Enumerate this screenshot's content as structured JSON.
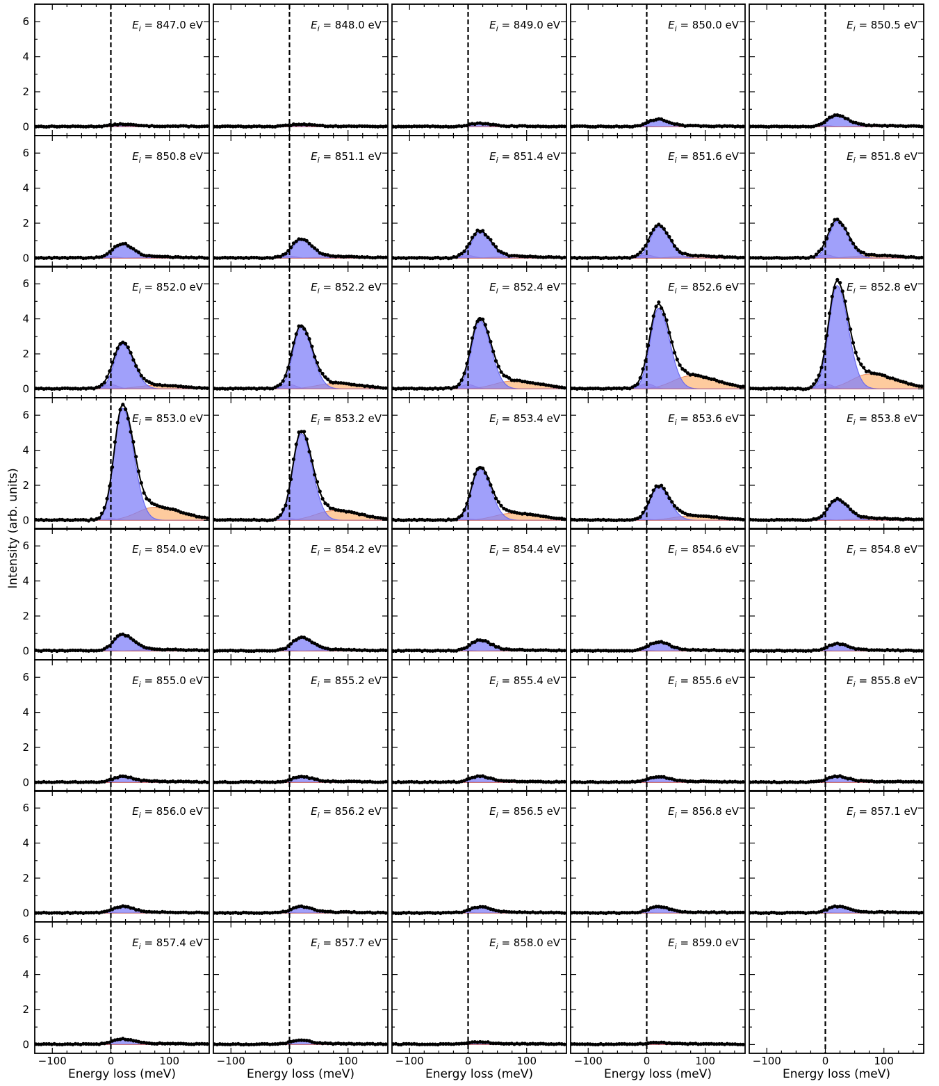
{
  "chart_data": {
    "type": "line",
    "layout": {
      "rows": 8,
      "cols": 5
    },
    "ylabel": "Intensity (arb. units)",
    "xlabel": "Energy loss (meV)",
    "xlim": [
      -130,
      168
    ],
    "ylim": [
      -0.5,
      7.0
    ],
    "xticks": [
      -100,
      0,
      100
    ],
    "xtick_labels": [
      "−100",
      "0",
      "100"
    ],
    "yticks": [
      0,
      2,
      4,
      6
    ],
    "ytick_labels": [
      "0",
      "2",
      "4",
      "6"
    ],
    "elastic_line_x": 0,
    "label_prefix": "E",
    "label_subscript": "i",
    "label_unit": "eV",
    "colors": {
      "data_points": "#000000",
      "fit_line": "#000000",
      "main_peak_fill": "#8080f8",
      "main_peak_edge": "#6a6aee",
      "broad_fill": "#fdb97d",
      "broad_edge": "#e8845a",
      "elastic_fill": "#b37dbf",
      "dashed_line": "#000000"
    },
    "panels": [
      {
        "label": "847.0",
        "peak": 0.12,
        "broad": 0.02,
        "elastic": 0.03
      },
      {
        "label": "848.0",
        "peak": 0.12,
        "broad": 0.02,
        "elastic": 0.03
      },
      {
        "label": "849.0",
        "peak": 0.16,
        "broad": 0.02,
        "elastic": 0.03
      },
      {
        "label": "850.0",
        "peak": 0.4,
        "broad": 0.03,
        "elastic": 0.05
      },
      {
        "label": "850.5",
        "peak": 0.62,
        "broad": 0.05,
        "elastic": 0.08
      },
      {
        "label": "850.8",
        "peak": 0.78,
        "broad": 0.06,
        "elastic": 0.1
      },
      {
        "label": "851.1",
        "peak": 1.05,
        "broad": 0.08,
        "elastic": 0.12
      },
      {
        "label": "851.4",
        "peak": 1.5,
        "broad": 0.1,
        "elastic": 0.15
      },
      {
        "label": "851.6",
        "peak": 1.8,
        "broad": 0.12,
        "elastic": 0.18
      },
      {
        "label": "851.8",
        "peak": 2.1,
        "broad": 0.15,
        "elastic": 0.2
      },
      {
        "label": "852.0",
        "peak": 2.55,
        "broad": 0.2,
        "elastic": 0.25
      },
      {
        "label": "852.2",
        "peak": 3.5,
        "broad": 0.3,
        "elastic": 0.25
      },
      {
        "label": "852.4",
        "peak": 3.9,
        "broad": 0.45,
        "elastic": 0.25
      },
      {
        "label": "852.6",
        "peak": 4.6,
        "broad": 0.75,
        "elastic": 0.3
      },
      {
        "label": "852.8",
        "peak": 5.9,
        "broad": 0.85,
        "elastic": 0.3
      },
      {
        "label": "853.0",
        "peak": 6.4,
        "broad": 0.75,
        "elastic": 0.1
      },
      {
        "label": "853.2",
        "peak": 4.95,
        "broad": 0.55,
        "elastic": 0.1
      },
      {
        "label": "853.4",
        "peak": 2.95,
        "broad": 0.4,
        "elastic": 0.08
      },
      {
        "label": "853.6",
        "peak": 1.9,
        "broad": 0.25,
        "elastic": 0.06
      },
      {
        "label": "853.8",
        "peak": 1.15,
        "broad": 0.1,
        "elastic": 0.05
      },
      {
        "label": "854.0",
        "peak": 0.9,
        "broad": 0.08,
        "elastic": 0.05
      },
      {
        "label": "854.2",
        "peak": 0.75,
        "broad": 0.06,
        "elastic": 0.04
      },
      {
        "label": "854.4",
        "peak": 0.6,
        "broad": 0.05,
        "elastic": 0.04
      },
      {
        "label": "854.6",
        "peak": 0.5,
        "broad": 0.04,
        "elastic": 0.04
      },
      {
        "label": "854.8",
        "peak": 0.38,
        "broad": 0.04,
        "elastic": 0.03
      },
      {
        "label": "855.0",
        "peak": 0.3,
        "broad": 0.04,
        "elastic": 0.03
      },
      {
        "label": "855.2",
        "peak": 0.3,
        "broad": 0.04,
        "elastic": 0.03
      },
      {
        "label": "855.4",
        "peak": 0.32,
        "broad": 0.04,
        "elastic": 0.03
      },
      {
        "label": "855.6",
        "peak": 0.3,
        "broad": 0.04,
        "elastic": 0.03
      },
      {
        "label": "855.8",
        "peak": 0.32,
        "broad": 0.04,
        "elastic": 0.03
      },
      {
        "label": "856.0",
        "peak": 0.35,
        "broad": 0.04,
        "elastic": 0.03
      },
      {
        "label": "856.2",
        "peak": 0.35,
        "broad": 0.04,
        "elastic": 0.03
      },
      {
        "label": "856.5",
        "peak": 0.33,
        "broad": 0.04,
        "elastic": 0.03
      },
      {
        "label": "856.8",
        "peak": 0.35,
        "broad": 0.04,
        "elastic": 0.03
      },
      {
        "label": "857.1",
        "peak": 0.35,
        "broad": 0.04,
        "elastic": 0.03
      },
      {
        "label": "857.4",
        "peak": 0.28,
        "broad": 0.04,
        "elastic": 0.03
      },
      {
        "label": "857.7",
        "peak": 0.2,
        "broad": 0.03,
        "elastic": 0.03
      },
      {
        "label": "858.0",
        "peak": 0.12,
        "broad": 0.02,
        "elastic": 0.02
      },
      {
        "label": "859.0",
        "peak": 0.08,
        "broad": 0.02,
        "elastic": 0.02
      },
      null
    ]
  }
}
